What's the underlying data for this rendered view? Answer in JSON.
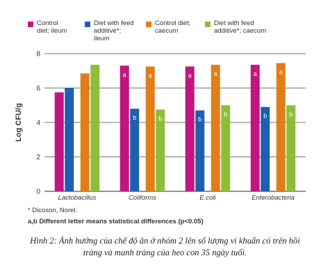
{
  "chart_data": {
    "type": "bar",
    "ylabel": "Log CFU/g",
    "ylim": [
      0,
      8
    ],
    "yticks": [
      0,
      2,
      4,
      6,
      8
    ],
    "grid": true,
    "legend_position": "top",
    "categories": [
      "Lactobacillus",
      "Coliforms",
      "E.coli",
      "Enterobacteria"
    ],
    "series": [
      {
        "name": "Control diet; ileum",
        "color": "#c0167f",
        "values": [
          5.75,
          7.3,
          7.25,
          7.35
        ],
        "annotations": [
          "",
          "a",
          "a",
          "a"
        ]
      },
      {
        "name": "Diet with feed additive*; ileum",
        "color": "#1f5fb0",
        "values": [
          6.0,
          4.8,
          4.7,
          4.9
        ],
        "annotations": [
          "",
          "b",
          "b",
          "b"
        ]
      },
      {
        "name": "Control diet; caecum",
        "color": "#e07e1a",
        "values": [
          6.85,
          7.25,
          7.35,
          7.45
        ],
        "annotations": [
          "",
          "a",
          "a",
          "a"
        ]
      },
      {
        "name": "Diet with feed additive*; caecum",
        "color": "#8fbd3b",
        "values": [
          7.35,
          4.75,
          5.0,
          5.0
        ],
        "annotations": [
          "",
          "b",
          "b",
          "b"
        ]
      }
    ]
  },
  "legend": [
    {
      "label": "Control\ndiet; ileum"
    },
    {
      "label": "Diet with feed\nadditive*;\nileum"
    },
    {
      "label": "Control diet;\ncaecum"
    },
    {
      "label": "Diet with feed\nadditive*; caecum"
    }
  ],
  "footnotes": {
    "source": "* Dicoson, Norel.",
    "significance": "a,b Different letter means statistical differences (p<0.05)"
  },
  "caption": {
    "line1": "Hình 2: Ảnh hưởng của chế độ ăn ở nhóm 2 lên số lượng vi khuẩn có trên hồi",
    "line2": "tràng và manh tràng của heo con 35 ngày tuổi."
  }
}
